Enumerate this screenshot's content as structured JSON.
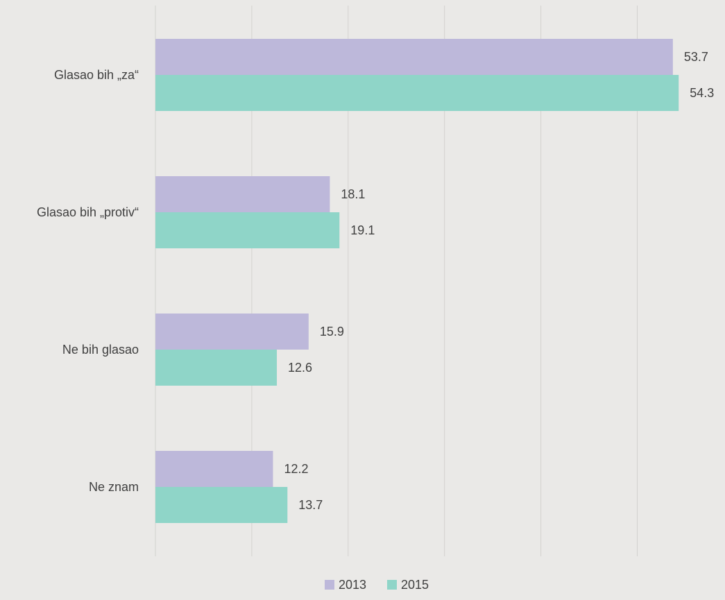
{
  "chart_data": {
    "type": "bar",
    "orientation": "horizontal",
    "categories": [
      "Glasao bih „za“",
      "Glasao bih „protiv“",
      "Ne bih glasao",
      "Ne znam"
    ],
    "series": [
      {
        "name": "2013",
        "values": [
          53.7,
          18.1,
          15.9,
          12.2
        ],
        "color": "#bdb8da"
      },
      {
        "name": "2015",
        "values": [
          54.3,
          19.1,
          12.6,
          13.7
        ],
        "color": "#8fd5c8"
      }
    ],
    "xlim": [
      0,
      60
    ],
    "grid": true,
    "legend_position": "bottom"
  },
  "colors": {
    "background": "#eae9e7",
    "grid": "#d3d2cf",
    "text": "#404040"
  }
}
